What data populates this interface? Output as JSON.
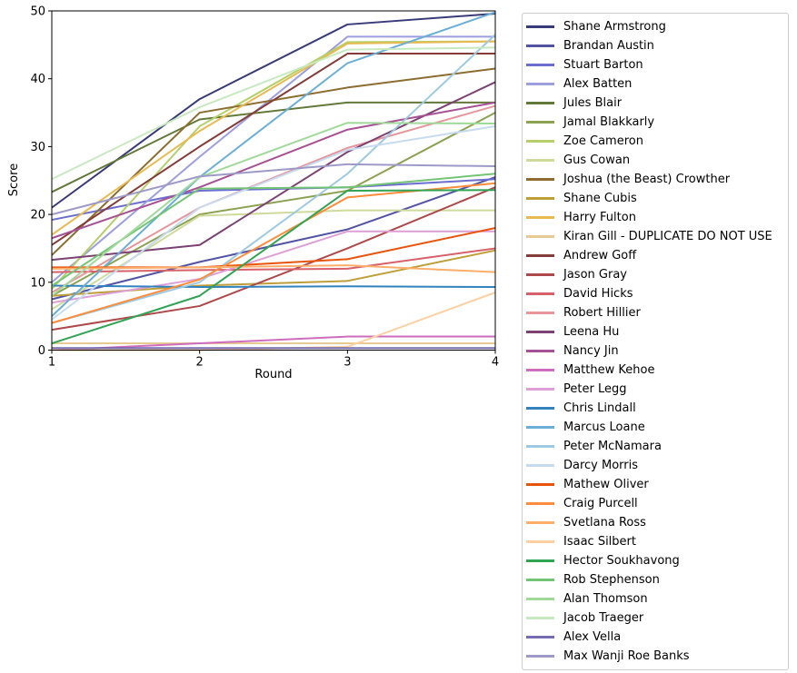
{
  "chart_data": {
    "type": "line",
    "title": "",
    "xlabel": "Round",
    "ylabel": "Score",
    "x": [
      1,
      2,
      3,
      4
    ],
    "xlim": [
      1,
      4
    ],
    "ylim": [
      0,
      50
    ],
    "x_ticks": [
      "1",
      "2",
      "3",
      "4"
    ],
    "y_ticks": [
      "0",
      "10",
      "20",
      "30",
      "40",
      "50"
    ],
    "grid": false,
    "legend_position": "outside-right",
    "series": [
      {
        "name": "Shane Armstrong",
        "color": "#393b79",
        "values": [
          21,
          37,
          48,
          49.6
        ]
      },
      {
        "name": "Brandan Austin",
        "color": "#5254a3",
        "values": [
          7.5,
          13,
          17.8,
          25.5
        ]
      },
      {
        "name": "Stuart Barton",
        "color": "#6b6ecf",
        "values": [
          19.2,
          23.5,
          24,
          25.2
        ]
      },
      {
        "name": "Alex Batten",
        "color": "#9c9ede",
        "values": [
          10,
          28.5,
          46.2,
          46.2
        ]
      },
      {
        "name": "Jules Blair",
        "color": "#637939",
        "values": [
          23.3,
          34,
          36.5,
          36.5
        ]
      },
      {
        "name": "Jamal Blakkarly",
        "color": "#8ca252",
        "values": [
          8,
          20,
          23.5,
          35
        ]
      },
      {
        "name": "Zoe Cameron",
        "color": "#b5cf6b",
        "values": [
          9,
          33,
          45.4,
          45.5
        ]
      },
      {
        "name": "Gus Cowan",
        "color": "#cedb9c",
        "values": [
          6,
          19.8,
          20.6,
          20.6
        ]
      },
      {
        "name": "Joshua (the Beast) Crowther",
        "color": "#8c6d31",
        "values": [
          14,
          35,
          38.7,
          41.5
        ]
      },
      {
        "name": "Shane Cubis",
        "color": "#bd9e39",
        "values": [
          8,
          9.5,
          10.2,
          14.7
        ]
      },
      {
        "name": "Harry Fulton",
        "color": "#e7ba52",
        "values": [
          17,
          32.3,
          45.2,
          45.5
        ]
      },
      {
        "name": "Kiran Gill - DUPLICATE DO NOT USE",
        "color": "#e7cb94",
        "values": [
          1,
          1,
          1,
          1
        ]
      },
      {
        "name": "Andrew Goff",
        "color": "#843c39",
        "values": [
          15.5,
          30,
          43.7,
          43.7
        ]
      },
      {
        "name": "Jason Gray",
        "color": "#ad494a",
        "values": [
          3,
          6.5,
          15,
          24
        ]
      },
      {
        "name": "David Hicks",
        "color": "#d6616b",
        "values": [
          11.5,
          11.8,
          12,
          15
        ]
      },
      {
        "name": "Robert Hillier",
        "color": "#e7969c",
        "values": [
          8.5,
          21,
          29.8,
          36
        ]
      },
      {
        "name": "Leena Hu",
        "color": "#7b4173",
        "values": [
          13.3,
          15.5,
          29.2,
          39.5
        ]
      },
      {
        "name": "Nancy Jin",
        "color": "#a55194",
        "values": [
          16.5,
          24,
          32.5,
          36.5
        ]
      },
      {
        "name": "Matthew Kehoe",
        "color": "#ce6dbd",
        "values": [
          0,
          1,
          2,
          2
        ]
      },
      {
        "name": "Peter Legg",
        "color": "#de9ed6",
        "values": [
          7,
          10.5,
          17.5,
          17.5
        ]
      },
      {
        "name": "Chris Lindall",
        "color": "#3182bd",
        "values": [
          9.5,
          9.3,
          9.4,
          9.3
        ]
      },
      {
        "name": "Marcus Loane",
        "color": "#6baed6",
        "values": [
          5,
          25.5,
          42.3,
          49.8
        ]
      },
      {
        "name": "Peter McNamara",
        "color": "#9ecae1",
        "values": [
          4,
          10,
          26,
          46.5
        ]
      },
      {
        "name": "Darcy Morris",
        "color": "#c6dbef",
        "values": [
          4.5,
          21,
          29.5,
          33
        ]
      },
      {
        "name": "Mathew Oliver",
        "color": "#e6550d",
        "values": [
          12.2,
          12.2,
          13.4,
          18
        ]
      },
      {
        "name": "Craig Purcell",
        "color": "#fd8d3c",
        "values": [
          4,
          10.4,
          22.5,
          24.6
        ]
      },
      {
        "name": "Svetlana Ross",
        "color": "#fdae6b",
        "values": [
          12,
          12.2,
          12.5,
          11.5
        ]
      },
      {
        "name": "Isaac Silbert",
        "color": "#fdd0a2",
        "values": [
          0,
          0,
          0.5,
          8.5
        ]
      },
      {
        "name": "Hector Soukhavong",
        "color": "#31a354",
        "values": [
          1,
          8,
          23.5,
          23.6
        ]
      },
      {
        "name": "Rob Stephenson",
        "color": "#74c476",
        "values": [
          9.5,
          23.8,
          24,
          26
        ]
      },
      {
        "name": "Alan Thomson",
        "color": "#a1d99b",
        "values": [
          8,
          25.5,
          33.5,
          33.4
        ]
      },
      {
        "name": "Jacob Traeger",
        "color": "#c7e9c0",
        "values": [
          25.2,
          35.8,
          44.3,
          44.6
        ]
      },
      {
        "name": "Alex Vella",
        "color": "#756bb1",
        "values": [
          0.3,
          0.3,
          0.3,
          0.3
        ]
      },
      {
        "name": "Max Wanji Roe Banks",
        "color": "#9e9ac8",
        "values": [
          20,
          25.6,
          27.4,
          27.1
        ]
      }
    ]
  }
}
